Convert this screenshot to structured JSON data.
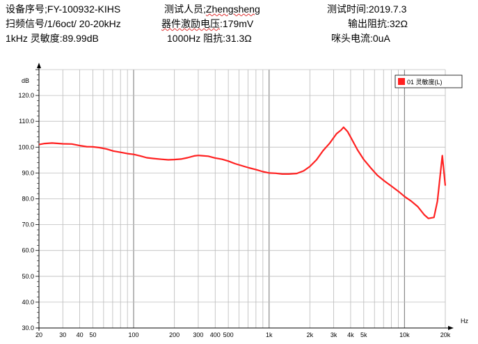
{
  "header": {
    "device_no": "设备序号;FY-100932-KIHS",
    "tester_label": "测试人员;",
    "tester_name": "Zhengsheng",
    "test_time": "测试时间:2019.7.3",
    "sweep_signal": "扫频信号/1/6oct/ 20-20kHz",
    "excitation_label": "器件激励电压",
    "excitation_value": ":179mV",
    "output_impedance": "输出阻抗:32Ω",
    "sensitivity_1k": "1kHz 灵敏度:89.99dB",
    "impedance_1k": "1000Hz 阻抗:31.3Ω",
    "current": "咪头电流:0uA"
  },
  "chart_data": {
    "type": "line",
    "title": "",
    "xlabel": "Hz",
    "ylabel": "dB",
    "x_scale": "log",
    "xlim": [
      20,
      20000
    ],
    "ylim": [
      30,
      130
    ],
    "grid": true,
    "legend_position": "top-right",
    "y_ticks": [
      "30.0",
      "40.0",
      "50.0",
      "60.0",
      "70.0",
      "80.0",
      "90.0",
      "100.0",
      "110.0",
      "120.0"
    ],
    "x_tick_labels": [
      {
        "value": 20,
        "label": "20"
      },
      {
        "value": 30,
        "label": "30"
      },
      {
        "value": 40,
        "label": "40"
      },
      {
        "value": 50,
        "label": "50"
      },
      {
        "value": 100,
        "label": "100"
      },
      {
        "value": 200,
        "label": "200"
      },
      {
        "value": 300,
        "label": "300"
      },
      {
        "value": 400,
        "label": "400"
      },
      {
        "value": 500,
        "label": "500"
      },
      {
        "value": 1000,
        "label": "1k"
      },
      {
        "value": 2000,
        "label": "2k"
      },
      {
        "value": 3000,
        "label": "3k"
      },
      {
        "value": 4000,
        "label": "4k"
      },
      {
        "value": 5000,
        "label": "5k"
      },
      {
        "value": 10000,
        "label": "10k"
      },
      {
        "value": 20000,
        "label": "20k"
      }
    ],
    "series": [
      {
        "name": "01 灵敏度(L)",
        "color": "#ff2020",
        "x": [
          20,
          22,
          25,
          30,
          35,
          40,
          45,
          50,
          56,
          63,
          71,
          80,
          90,
          100,
          112,
          125,
          140,
          160,
          180,
          200,
          224,
          250,
          280,
          300,
          315,
          355,
          400,
          450,
          500,
          560,
          630,
          710,
          800,
          900,
          1000,
          1120,
          1250,
          1400,
          1600,
          1800,
          2000,
          2240,
          2500,
          2800,
          3150,
          3400,
          3550,
          3800,
          4000,
          4500,
          5000,
          5600,
          6300,
          7100,
          8000,
          9000,
          10000,
          11200,
          12500,
          14000,
          15000,
          16500,
          17500,
          19000,
          20000
        ],
        "values": [
          101.0,
          101.4,
          101.6,
          101.3,
          101.2,
          100.6,
          100.2,
          100.1,
          99.8,
          99.3,
          98.5,
          98.0,
          97.5,
          97.2,
          96.6,
          95.9,
          95.6,
          95.3,
          95.1,
          95.2,
          95.4,
          95.9,
          96.6,
          96.8,
          96.7,
          96.5,
          95.8,
          95.3,
          94.6,
          93.6,
          92.8,
          92.0,
          91.3,
          90.5,
          90.0,
          89.9,
          89.6,
          89.6,
          89.8,
          90.8,
          92.5,
          95.1,
          98.6,
          101.5,
          105.2,
          106.6,
          107.7,
          106.0,
          103.9,
          98.9,
          95.2,
          92.1,
          89.1,
          86.9,
          84.9,
          82.9,
          80.9,
          79.1,
          77.0,
          73.8,
          72.4,
          72.8,
          79.1,
          96.7,
          85.1
        ]
      }
    ]
  }
}
